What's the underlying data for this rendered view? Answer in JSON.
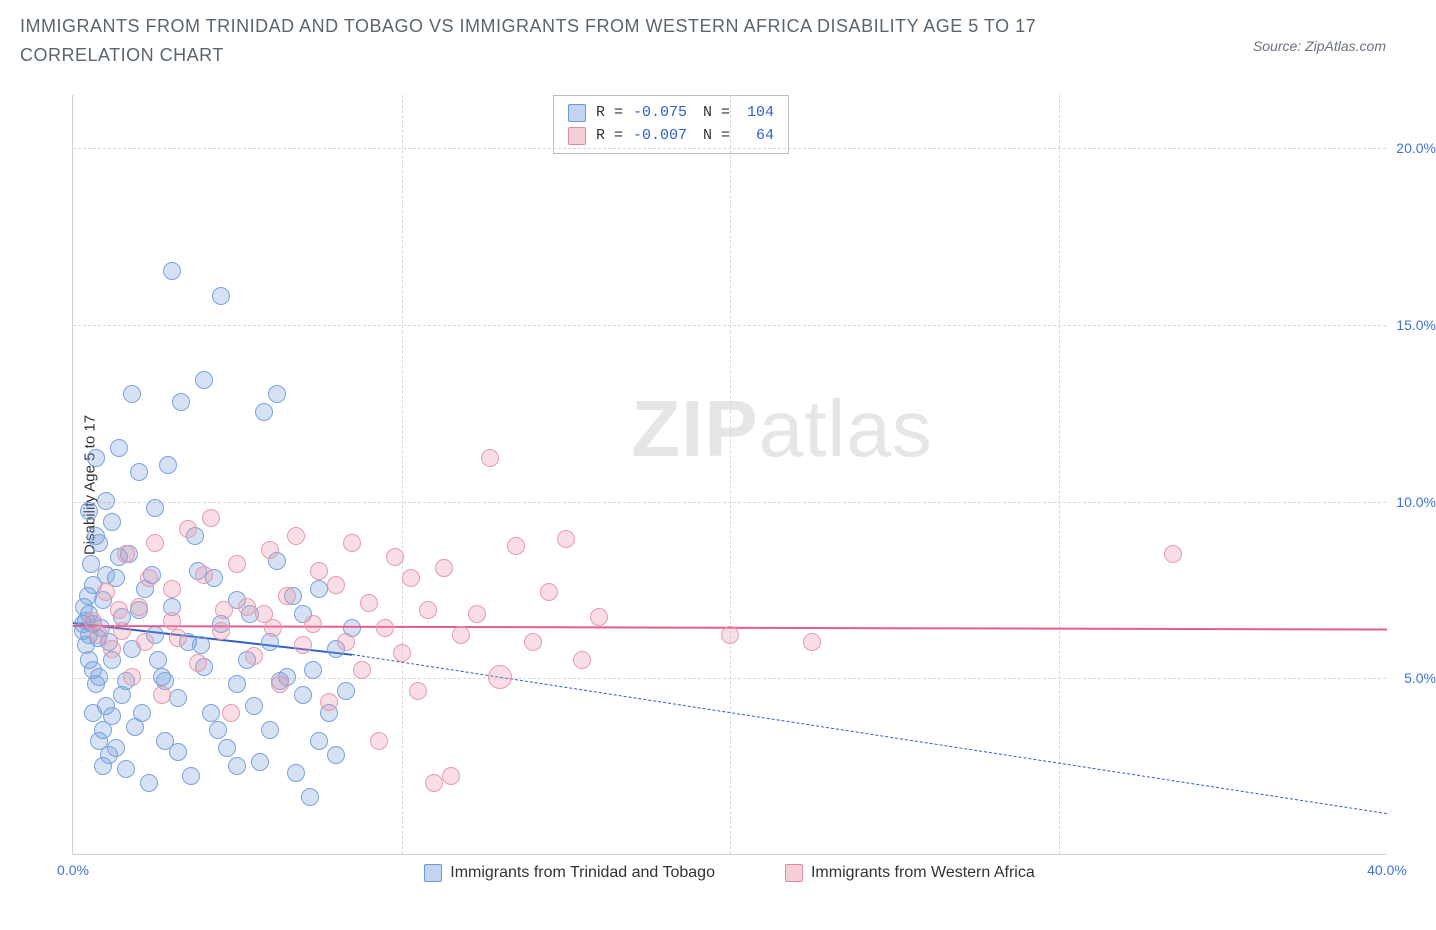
{
  "title": "IMMIGRANTS FROM TRINIDAD AND TOBAGO VS IMMIGRANTS FROM WESTERN AFRICA DISABILITY AGE 5 TO 17 CORRELATION CHART",
  "source": "Source: ZipAtlas.com",
  "y_axis_label": "Disability Age 5 to 17",
  "watermark_a": "ZIP",
  "watermark_b": "atlas",
  "chart": {
    "type": "scatter",
    "x_min": 0,
    "x_max": 40,
    "y_min": 0,
    "y_max": 21.5,
    "background_color": "#ffffff",
    "grid_color": "#d8d8d8",
    "axis_color": "#cfcfcf",
    "tick_color": "#3e74d8",
    "tick_fontsize": 14,
    "label_fontsize": 15,
    "y_ticks": [
      5.0,
      10.0,
      15.0,
      20.0
    ],
    "y_tick_labels": [
      "5.0%",
      "10.0%",
      "15.0%",
      "20.0%"
    ],
    "x_ticks": [
      0,
      40
    ],
    "x_tick_labels": [
      "0.0%",
      "40.0%"
    ],
    "x_grid": [
      10,
      20,
      30
    ],
    "marker_radius": 9,
    "series": [
      {
        "name": "Immigrants from Trinidad and Tobago",
        "color_fill": "rgba(120,160,220,0.30)",
        "color_stroke": "#7aa3dd",
        "legend_class": "sw-blue",
        "R": "-0.075",
        "N": "104",
        "regression": {
          "x1": 0,
          "y1": 6.6,
          "x2": 8.5,
          "y2": 5.7,
          "color": "#2e5fc9",
          "width": 2.5,
          "dash": "none",
          "ext_x2": 40,
          "ext_y2": 1.2,
          "ext_dash": "6,5",
          "ext_width": 1.5
        },
        "points": [
          [
            0.3,
            6.5
          ],
          [
            0.3,
            6.3
          ],
          [
            0.35,
            7.0
          ],
          [
            0.4,
            6.6
          ],
          [
            0.4,
            5.9
          ],
          [
            0.45,
            7.3
          ],
          [
            0.5,
            6.2
          ],
          [
            0.5,
            6.8
          ],
          [
            0.5,
            5.5
          ],
          [
            0.55,
            8.2
          ],
          [
            0.6,
            6.5
          ],
          [
            0.6,
            5.2
          ],
          [
            0.6,
            7.6
          ],
          [
            0.7,
            4.8
          ],
          [
            0.7,
            9.0
          ],
          [
            0.75,
            6.1
          ],
          [
            0.8,
            5.0
          ],
          [
            0.8,
            8.8
          ],
          [
            0.85,
            6.4
          ],
          [
            0.9,
            3.5
          ],
          [
            0.9,
            7.2
          ],
          [
            1.0,
            10.0
          ],
          [
            1.0,
            4.2
          ],
          [
            1.1,
            6.0
          ],
          [
            1.1,
            2.8
          ],
          [
            1.2,
            9.4
          ],
          [
            1.2,
            5.5
          ],
          [
            1.3,
            7.8
          ],
          [
            1.3,
            3.0
          ],
          [
            1.4,
            11.5
          ],
          [
            1.5,
            4.5
          ],
          [
            1.5,
            6.7
          ],
          [
            1.6,
            2.4
          ],
          [
            1.7,
            8.5
          ],
          [
            1.8,
            5.8
          ],
          [
            1.9,
            3.6
          ],
          [
            2.0,
            6.9
          ],
          [
            2.0,
            10.8
          ],
          [
            2.1,
            4.0
          ],
          [
            2.2,
            7.5
          ],
          [
            2.3,
            2.0
          ],
          [
            2.5,
            6.2
          ],
          [
            2.5,
            9.8
          ],
          [
            2.7,
            5.0
          ],
          [
            2.8,
            3.2
          ],
          [
            3.0,
            7.0
          ],
          [
            3.0,
            16.5
          ],
          [
            3.2,
            4.4
          ],
          [
            3.3,
            12.8
          ],
          [
            3.5,
            6.0
          ],
          [
            3.6,
            2.2
          ],
          [
            3.8,
            8.0
          ],
          [
            4.0,
            5.3
          ],
          [
            4.0,
            13.4
          ],
          [
            4.2,
            4.0
          ],
          [
            4.5,
            6.5
          ],
          [
            4.5,
            15.8
          ],
          [
            4.7,
            3.0
          ],
          [
            5.0,
            7.2
          ],
          [
            5.0,
            2.5
          ],
          [
            5.3,
            5.5
          ],
          [
            5.5,
            4.2
          ],
          [
            5.8,
            12.5
          ],
          [
            6.0,
            6.0
          ],
          [
            6.0,
            3.5
          ],
          [
            6.2,
            8.3
          ],
          [
            6.2,
            13.0
          ],
          [
            6.5,
            5.0
          ],
          [
            6.8,
            2.3
          ],
          [
            7.0,
            6.8
          ],
          [
            7.0,
            4.5
          ],
          [
            7.2,
            1.6
          ],
          [
            7.5,
            7.5
          ],
          [
            7.5,
            3.2
          ],
          [
            8.0,
            5.8
          ],
          [
            8.0,
            2.8
          ],
          [
            8.3,
            4.6
          ],
          [
            8.5,
            6.4
          ],
          [
            5.0,
            4.8
          ],
          [
            4.3,
            7.8
          ],
          [
            3.7,
            9.0
          ],
          [
            2.9,
            11.0
          ],
          [
            1.8,
            13.0
          ],
          [
            1.0,
            7.9
          ],
          [
            0.6,
            4.0
          ],
          [
            0.8,
            3.2
          ],
          [
            1.4,
            8.4
          ],
          [
            2.4,
            7.9
          ],
          [
            2.8,
            4.9
          ],
          [
            3.2,
            2.9
          ],
          [
            3.9,
            5.9
          ],
          [
            4.4,
            3.5
          ],
          [
            5.4,
            6.8
          ],
          [
            5.7,
            2.6
          ],
          [
            6.3,
            4.9
          ],
          [
            6.7,
            7.3
          ],
          [
            7.3,
            5.2
          ],
          [
            7.8,
            4.0
          ],
          [
            2.6,
            5.5
          ],
          [
            1.6,
            4.9
          ],
          [
            0.9,
            2.5
          ],
          [
            1.2,
            3.9
          ],
          [
            0.7,
            11.2
          ],
          [
            0.5,
            9.7
          ]
        ]
      },
      {
        "name": "Immigrants from Western Africa",
        "color_fill": "rgba(235,150,170,0.30)",
        "color_stroke": "#e79bb0",
        "legend_class": "sw-pink",
        "R": "-0.007",
        "N": "64",
        "regression": {
          "x1": 0,
          "y1": 6.5,
          "x2": 40,
          "y2": 6.4,
          "color": "#e35e8a",
          "width": 2,
          "dash": "none"
        },
        "points": [
          [
            0.6,
            6.6
          ],
          [
            0.8,
            6.2
          ],
          [
            1.0,
            7.4
          ],
          [
            1.2,
            5.8
          ],
          [
            1.4,
            6.9
          ],
          [
            1.6,
            8.5
          ],
          [
            1.8,
            5.0
          ],
          [
            2.0,
            7.0
          ],
          [
            2.2,
            6.0
          ],
          [
            2.5,
            8.8
          ],
          [
            2.7,
            4.5
          ],
          [
            3.0,
            7.5
          ],
          [
            3.2,
            6.1
          ],
          [
            3.5,
            9.2
          ],
          [
            3.8,
            5.4
          ],
          [
            4.0,
            7.9
          ],
          [
            4.2,
            9.5
          ],
          [
            4.5,
            6.3
          ],
          [
            4.8,
            4.0
          ],
          [
            5.0,
            8.2
          ],
          [
            5.3,
            7.0
          ],
          [
            5.5,
            5.6
          ],
          [
            5.8,
            6.8
          ],
          [
            6.0,
            8.6
          ],
          [
            6.3,
            4.8
          ],
          [
            6.5,
            7.3
          ],
          [
            6.8,
            9.0
          ],
          [
            7.0,
            5.9
          ],
          [
            7.3,
            6.5
          ],
          [
            7.5,
            8.0
          ],
          [
            7.8,
            4.3
          ],
          [
            8.0,
            7.6
          ],
          [
            8.3,
            6.0
          ],
          [
            8.5,
            8.8
          ],
          [
            8.8,
            5.2
          ],
          [
            9.0,
            7.1
          ],
          [
            9.3,
            3.2
          ],
          [
            9.5,
            6.4
          ],
          [
            9.8,
            8.4
          ],
          [
            10.0,
            5.7
          ],
          [
            10.3,
            7.8
          ],
          [
            10.5,
            4.6
          ],
          [
            10.8,
            6.9
          ],
          [
            11.0,
            2.0
          ],
          [
            11.3,
            8.1
          ],
          [
            11.5,
            2.2
          ],
          [
            11.8,
            6.2
          ],
          [
            12.3,
            6.8
          ],
          [
            12.7,
            11.2
          ],
          [
            13.0,
            5,
            12
          ],
          [
            13.5,
            8.7
          ],
          [
            14.0,
            6.0
          ],
          [
            14.5,
            7.4
          ],
          [
            15.0,
            8.9
          ],
          [
            15.5,
            5.5
          ],
          [
            16.0,
            6.7
          ],
          [
            20.0,
            6.2
          ],
          [
            22.5,
            6.0
          ],
          [
            33.5,
            8.5
          ],
          [
            3.0,
            6.6
          ],
          [
            2.3,
            7.8
          ],
          [
            1.5,
            6.3
          ],
          [
            4.6,
            6.9
          ],
          [
            6.1,
            6.4
          ]
        ]
      }
    ]
  },
  "stats_labels": {
    "R": "R =",
    "N": "N ="
  },
  "bottom_legend": [
    {
      "label": "Immigrants from Trinidad and Tobago",
      "swatch": "sw-blue"
    },
    {
      "label": "Immigrants from Western Africa",
      "swatch": "sw-pink"
    }
  ]
}
